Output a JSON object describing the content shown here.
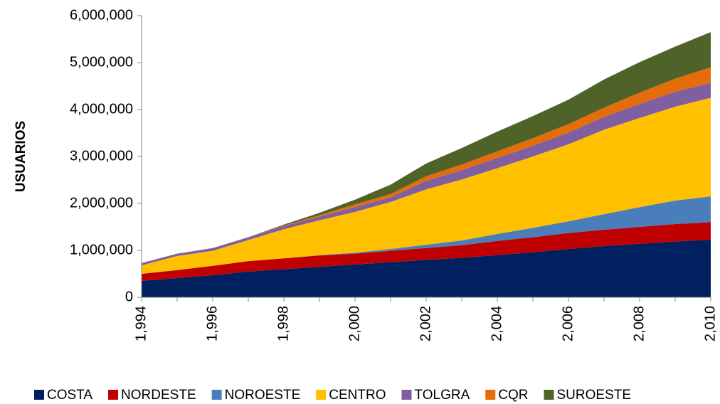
{
  "chart_data": {
    "type": "area",
    "stacked": true,
    "y_label": "USUARIOS",
    "x": [
      1994,
      1995,
      1996,
      1997,
      1998,
      1999,
      2000,
      2001,
      2002,
      2003,
      2004,
      2005,
      2006,
      2007,
      2008,
      2009,
      2010
    ],
    "series": [
      {
        "name": "COSTA",
        "color": "#002060",
        "values": [
          350000,
          410000,
          470000,
          550000,
          600000,
          650000,
          700000,
          750000,
          800000,
          840000,
          900000,
          960000,
          1030000,
          1090000,
          1140000,
          1190000,
          1230000
        ]
      },
      {
        "name": "NORDESTE",
        "color": "#c00000",
        "values": [
          150000,
          170000,
          200000,
          220000,
          230000,
          240000,
          230000,
          240000,
          250000,
          270000,
          300000,
          320000,
          340000,
          350000,
          360000,
          370000,
          370000
        ]
      },
      {
        "name": "NOROESTE",
        "color": "#4a7ebb",
        "values": [
          0,
          0,
          0,
          0,
          0,
          10000,
          20000,
          40000,
          70000,
          100000,
          150000,
          200000,
          250000,
          330000,
          420000,
          500000,
          550000
        ]
      },
      {
        "name": "CENTRO",
        "color": "#ffc000",
        "values": [
          180000,
          300000,
          320000,
          450000,
          620000,
          740000,
          870000,
          1000000,
          1180000,
          1300000,
          1400000,
          1520000,
          1640000,
          1800000,
          1900000,
          2000000,
          2100000
        ]
      },
      {
        "name": "TOLGRA",
        "color": "#7f5f9f",
        "values": [
          50000,
          50000,
          60000,
          60000,
          70000,
          80000,
          100000,
          100000,
          180000,
          200000,
          220000,
          230000,
          250000,
          270000,
          300000,
          320000,
          320000
        ]
      },
      {
        "name": "CQR",
        "color": "#e46c0a",
        "values": [
          0,
          0,
          0,
          0,
          10000,
          30000,
          60000,
          70000,
          100000,
          120000,
          140000,
          160000,
          180000,
          200000,
          240000,
          280000,
          330000
        ]
      },
      {
        "name": "SUROESTE",
        "color": "#4f6228",
        "values": [
          0,
          0,
          0,
          0,
          20000,
          50000,
          100000,
          200000,
          270000,
          350000,
          420000,
          470000,
          520000,
          600000,
          650000,
          680000,
          750000
        ]
      }
    ],
    "xlim": [
      1994,
      2010
    ],
    "xticks": [
      {
        "value": 1994,
        "label": "1,994"
      },
      {
        "value": 1996,
        "label": "1,996"
      },
      {
        "value": 1998,
        "label": "1,998"
      },
      {
        "value": 2000,
        "label": "2,000"
      },
      {
        "value": 2002,
        "label": "2,002"
      },
      {
        "value": 2004,
        "label": "2,004"
      },
      {
        "value": 2006,
        "label": "2,006"
      },
      {
        "value": 2008,
        "label": "2,008"
      },
      {
        "value": 2010,
        "label": "2,010"
      }
    ],
    "ylim": [
      0,
      6000000
    ],
    "yticks": [
      0,
      {
        "value": 1000000,
        "label": "1,000,000"
      },
      {
        "value": 2000000,
        "label": "2,000,000"
      },
      {
        "value": 3000000,
        "label": "3,000,000"
      },
      {
        "value": 4000000,
        "label": "4,000,000"
      },
      {
        "value": 5000000,
        "label": "5,000,000"
      },
      {
        "value": 6000000,
        "label": "6,000,000"
      }
    ],
    "legend": "bottom"
  }
}
